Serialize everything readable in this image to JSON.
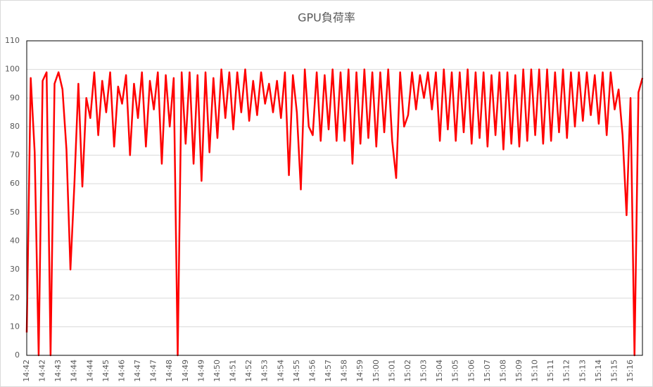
{
  "chart_data": {
    "type": "line",
    "title": "GPU負荷率",
    "categories": [
      "14:42",
      null,
      null,
      null,
      "14:42",
      null,
      null,
      null,
      "14:43",
      null,
      null,
      null,
      "14:44",
      null,
      null,
      null,
      "14:44",
      null,
      null,
      null,
      "14:45",
      null,
      null,
      null,
      "14:46",
      null,
      null,
      null,
      "14:47",
      null,
      null,
      null,
      "14:47",
      null,
      null,
      null,
      "14:48",
      null,
      null,
      null,
      "14:49",
      null,
      null,
      null,
      "14:49",
      null,
      null,
      null,
      "14:50",
      null,
      null,
      null,
      "14:51",
      null,
      null,
      null,
      "14:52",
      null,
      null,
      null,
      "14:53",
      null,
      null,
      null,
      "14:54",
      null,
      null,
      null,
      "14:55",
      null,
      null,
      null,
      "14:56",
      null,
      null,
      null,
      "14:57",
      null,
      null,
      null,
      "14:58",
      null,
      null,
      null,
      "14:59",
      null,
      null,
      null,
      "15:00",
      null,
      null,
      null,
      "15:01",
      null,
      null,
      null,
      "15:02",
      null,
      null,
      null,
      "15:03",
      null,
      null,
      null,
      "15:04",
      null,
      null,
      null,
      "15:05",
      null,
      null,
      null,
      "15:06",
      null,
      null,
      null,
      "15:07",
      null,
      null,
      null,
      "15:08",
      null,
      null,
      null,
      "15:09",
      null,
      null,
      null,
      "15:10",
      null,
      null,
      null,
      "15:11",
      null,
      null,
      null,
      "15:12",
      null,
      null,
      null,
      "15:13",
      null,
      null,
      null,
      "15:14",
      null,
      null,
      null,
      "15:15",
      null,
      null,
      null,
      "15:16",
      null,
      null,
      null
    ],
    "series": [
      {
        "color": "#ff0000",
        "values": [
          8,
          97,
          71,
          0,
          96,
          99,
          0,
          95,
          99,
          93,
          72,
          30,
          60,
          95,
          59,
          90,
          83,
          99,
          77,
          96,
          85,
          99,
          73,
          94,
          88,
          98,
          70,
          95,
          83,
          99,
          73,
          96,
          86,
          99,
          67,
          98,
          80,
          97,
          0,
          99,
          74,
          99,
          67,
          98,
          61,
          99,
          71,
          97,
          76,
          100,
          83,
          99,
          79,
          99,
          85,
          100,
          82,
          96,
          84,
          99,
          88,
          95,
          85,
          96,
          83,
          99,
          63,
          98,
          85,
          58,
          100,
          80,
          77,
          99,
          75,
          98,
          79,
          100,
          75,
          99,
          75,
          100,
          67,
          99,
          74,
          100,
          76,
          99,
          73,
          99,
          78,
          100,
          75,
          62,
          99,
          80,
          84,
          99,
          86,
          98,
          90,
          99,
          86,
          99,
          75,
          100,
          79,
          99,
          75,
          99,
          78,
          100,
          74,
          99,
          76,
          99,
          73,
          98,
          77,
          99,
          72,
          99,
          74,
          98,
          73,
          100,
          75,
          100,
          77,
          100,
          74,
          100,
          75,
          99,
          78,
          100,
          76,
          99,
          80,
          99,
          82,
          99,
          84,
          98,
          81,
          99,
          77,
          99,
          86,
          93,
          77,
          49,
          90,
          0,
          92,
          97
        ]
      }
    ],
    "ylim": [
      0,
      110
    ],
    "yticks": [
      0,
      10,
      20,
      30,
      40,
      50,
      60,
      70,
      80,
      90,
      100,
      110
    ],
    "grid": true
  }
}
